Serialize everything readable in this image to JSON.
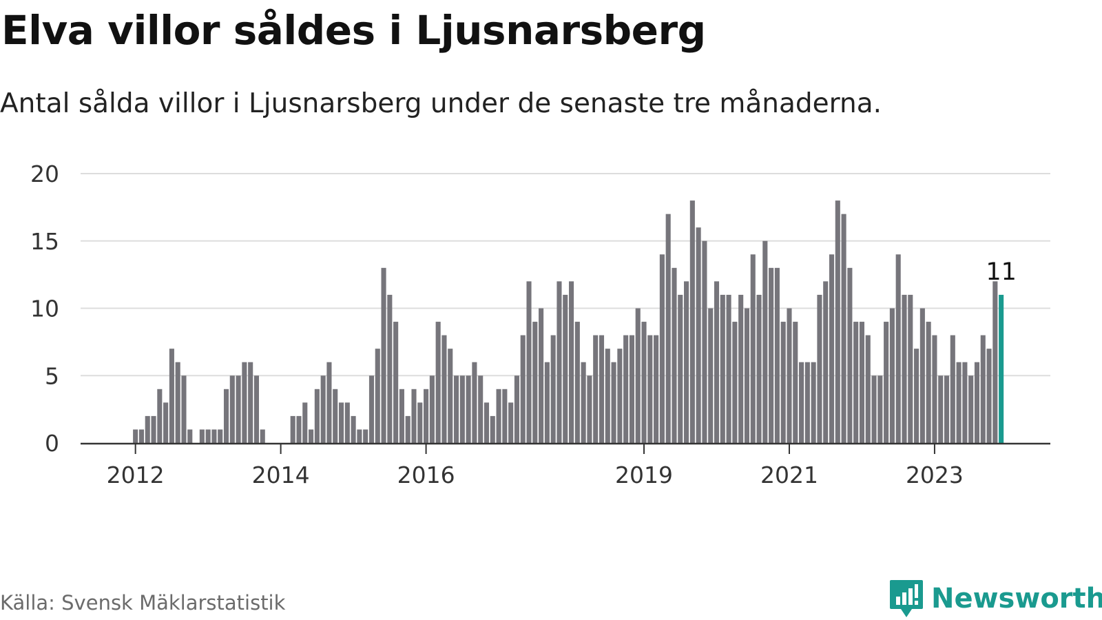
{
  "title": "Elva villor såldes i Ljusnarsberg",
  "subtitle": "Antal sålda villor i Ljusnarsberg under de senaste tre månaderna.",
  "source": "Källa: Svensk Mäklarstatistik",
  "brand": "Newsworthy",
  "colors": {
    "bar": "#76757b",
    "highlight": "#1a9a8f",
    "grid": "#dddddd",
    "axis": "#333333",
    "brand": "#1a9a8f"
  },
  "chart_data": {
    "type": "bar",
    "x_start": "2011-04",
    "x_end": "2023-09",
    "values": [
      0,
      0,
      0,
      0,
      0,
      0,
      0,
      0,
      0,
      1,
      1,
      2,
      2,
      4,
      3,
      7,
      6,
      5,
      1,
      0,
      1,
      1,
      1,
      1,
      4,
      5,
      5,
      6,
      6,
      5,
      1,
      0,
      0,
      0,
      0,
      2,
      2,
      3,
      1,
      4,
      5,
      6,
      4,
      3,
      3,
      2,
      1,
      1,
      5,
      7,
      13,
      11,
      9,
      4,
      2,
      4,
      3,
      4,
      5,
      9,
      8,
      7,
      5,
      5,
      5,
      6,
      5,
      3,
      2,
      4,
      4,
      3,
      5,
      8,
      12,
      9,
      10,
      6,
      8,
      12,
      11,
      12,
      9,
      6,
      5,
      8,
      8,
      7,
      6,
      7,
      8,
      8,
      10,
      9,
      8,
      8,
      14,
      17,
      13,
      11,
      12,
      18,
      16,
      15,
      10,
      12,
      11,
      11,
      9,
      11,
      10,
      14,
      11,
      15,
      13,
      13,
      9,
      10,
      9,
      6,
      6,
      6,
      11,
      12,
      14,
      18,
      17,
      13,
      9,
      9,
      8,
      5,
      5,
      9,
      10,
      14,
      11,
      11,
      7,
      10,
      9,
      8,
      5,
      5,
      8,
      6,
      6,
      5,
      6,
      8,
      7,
      12,
      11
    ],
    "highlight_last": true,
    "annotation": {
      "value": "11"
    },
    "x_ticks": [
      "2012",
      "2014",
      "2016",
      "2019",
      "2021",
      "2023"
    ],
    "y_ticks": [
      "0",
      "5",
      "10",
      "15",
      "20"
    ],
    "ylim": [
      0,
      20
    ],
    "grid": true
  }
}
